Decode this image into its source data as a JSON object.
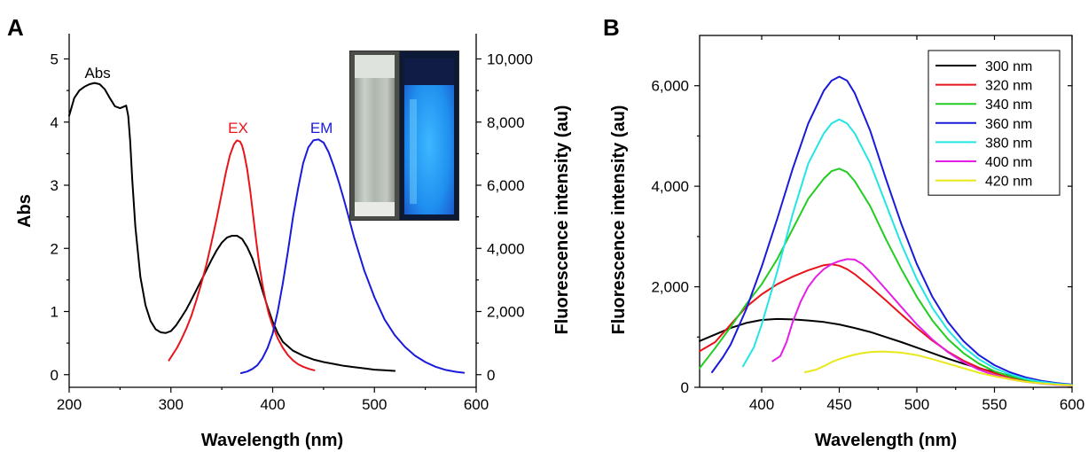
{
  "chart_data": [
    {
      "panel": "A",
      "type": "line",
      "xlabel": "Wavelength (nm)",
      "ylabel": "Abs",
      "y2label": "Fluorescence intensity (au)",
      "xlim": [
        200,
        600
      ],
      "ylim": [
        -0.2,
        5.4
      ],
      "y2lim": [
        -400,
        10800
      ],
      "xticks": [
        200,
        300,
        400,
        500,
        600
      ],
      "yticks": [
        0,
        1,
        2,
        3,
        4,
        5
      ],
      "y2ticks": [
        0,
        2000,
        4000,
        6000,
        8000,
        10000
      ],
      "y2ticklabels": [
        "0",
        "2,000",
        "4,000",
        "6,000",
        "8,000",
        "10,000"
      ],
      "annotations": [
        {
          "text": "Abs",
          "color": "#000000",
          "x": 228,
          "y": 4.7
        },
        {
          "text": "EX",
          "color": "#e8141b",
          "x": 366,
          "y": 3.83
        },
        {
          "text": "EM",
          "color": "#1a1adb",
          "x": 448,
          "y": 3.83
        }
      ],
      "inset": "photo of two cuvettes, left clear under daylight, right glowing blue under UV",
      "series": [
        {
          "id": "abs",
          "axis": "left",
          "color": "#000000",
          "x": [
            200,
            205,
            210,
            215,
            220,
            225,
            230,
            235,
            240,
            245,
            250,
            253,
            256,
            258,
            260,
            262,
            265,
            270,
            275,
            280,
            285,
            290,
            295,
            300,
            305,
            310,
            315,
            320,
            325,
            330,
            335,
            340,
            345,
            350,
            355,
            360,
            365,
            370,
            375,
            380,
            385,
            390,
            395,
            400,
            405,
            410,
            420,
            430,
            440,
            450,
            460,
            470,
            480,
            490,
            500,
            510,
            520
          ],
          "y": [
            4.1,
            4.38,
            4.5,
            4.56,
            4.6,
            4.62,
            4.6,
            4.52,
            4.38,
            4.25,
            4.22,
            4.24,
            4.26,
            4.1,
            3.7,
            3.1,
            2.35,
            1.55,
            1.1,
            0.85,
            0.72,
            0.67,
            0.66,
            0.69,
            0.78,
            0.9,
            1.03,
            1.18,
            1.34,
            1.5,
            1.66,
            1.82,
            1.97,
            2.09,
            2.17,
            2.2,
            2.2,
            2.15,
            2.02,
            1.84,
            1.6,
            1.33,
            1.07,
            0.84,
            0.66,
            0.52,
            0.38,
            0.3,
            0.24,
            0.2,
            0.17,
            0.14,
            0.12,
            0.1,
            0.08,
            0.07,
            0.06
          ]
        },
        {
          "id": "ex",
          "axis": "right",
          "color": "#e8141b",
          "x": [
            298,
            302,
            306,
            310,
            315,
            320,
            325,
            330,
            335,
            340,
            345,
            350,
            354,
            358,
            362,
            365,
            368,
            370,
            372,
            375,
            378,
            381,
            384,
            387,
            390,
            393,
            396,
            400,
            405,
            410,
            415,
            420,
            425,
            430,
            436,
            441
          ],
          "y": [
            450,
            650,
            850,
            1100,
            1450,
            1850,
            2350,
            2900,
            3500,
            4200,
            4950,
            5750,
            6400,
            6950,
            7300,
            7420,
            7380,
            7250,
            7000,
            6500,
            5800,
            5000,
            4200,
            3450,
            2850,
            2350,
            1950,
            1550,
            1150,
            850,
            620,
            450,
            330,
            250,
            180,
            140
          ]
        },
        {
          "id": "em",
          "axis": "right",
          "color": "#1a1adb",
          "x": [
            369,
            375,
            380,
            385,
            390,
            395,
            400,
            405,
            410,
            415,
            420,
            425,
            430,
            435,
            440,
            445,
            450,
            455,
            460,
            465,
            470,
            475,
            480,
            490,
            500,
            510,
            520,
            530,
            540,
            550,
            560,
            570,
            580,
            588
          ],
          "y": [
            50,
            100,
            180,
            300,
            520,
            850,
            1300,
            2000,
            2900,
            3900,
            5000,
            5900,
            6700,
            7200,
            7420,
            7450,
            7350,
            7050,
            6600,
            6100,
            5550,
            4950,
            4350,
            3300,
            2450,
            1750,
            1250,
            880,
            600,
            400,
            250,
            150,
            90,
            60
          ]
        }
      ]
    },
    {
      "panel": "B",
      "type": "line",
      "xlabel": "Wavelength (nm)",
      "ylabel": "Fluorescence intensity (au)",
      "xlim": [
        360,
        600
      ],
      "ylim": [
        0,
        7000
      ],
      "xticks": [
        400,
        450,
        500,
        550,
        600
      ],
      "yticks": [
        0,
        2000,
        4000,
        6000
      ],
      "yticklabels": [
        "0",
        "2,000",
        "4,000",
        "6,000"
      ],
      "legend_position": "top-right",
      "series": [
        {
          "name": "300 nm",
          "color": "#000000",
          "x": [
            360,
            370,
            380,
            390,
            400,
            410,
            420,
            430,
            440,
            450,
            460,
            470,
            480,
            490,
            500,
            510,
            520,
            530,
            540,
            550,
            560,
            570,
            580,
            590,
            600
          ],
          "y": [
            920,
            1050,
            1180,
            1280,
            1340,
            1360,
            1350,
            1330,
            1300,
            1250,
            1180,
            1100,
            1000,
            900,
            790,
            680,
            570,
            470,
            380,
            300,
            230,
            170,
            120,
            80,
            50
          ]
        },
        {
          "name": "320 nm",
          "color": "#e8141b",
          "x": [
            360,
            370,
            380,
            390,
            400,
            410,
            420,
            430,
            440,
            445,
            450,
            455,
            460,
            470,
            480,
            490,
            500,
            510,
            520,
            530,
            540,
            550,
            560,
            570,
            580,
            590,
            600
          ],
          "y": [
            720,
            900,
            1250,
            1600,
            1850,
            2050,
            2200,
            2330,
            2430,
            2450,
            2420,
            2350,
            2250,
            2000,
            1730,
            1450,
            1180,
            930,
            710,
            530,
            390,
            280,
            200,
            140,
            95,
            65,
            40
          ]
        },
        {
          "name": "340 nm",
          "color": "#22cc22",
          "x": [
            360,
            370,
            380,
            390,
            400,
            410,
            420,
            430,
            440,
            445,
            450,
            455,
            460,
            470,
            480,
            490,
            500,
            510,
            520,
            530,
            540,
            550,
            560,
            570,
            580,
            590,
            600
          ],
          "y": [
            380,
            780,
            1200,
            1650,
            2050,
            2550,
            3150,
            3750,
            4150,
            4300,
            4350,
            4280,
            4100,
            3600,
            2950,
            2350,
            1800,
            1330,
            960,
            680,
            470,
            320,
            220,
            150,
            100,
            70,
            45
          ]
        },
        {
          "name": "360 nm",
          "color": "#1a1adb",
          "x": [
            368,
            375,
            380,
            390,
            400,
            410,
            420,
            430,
            440,
            445,
            450,
            455,
            460,
            470,
            480,
            490,
            500,
            510,
            520,
            530,
            540,
            550,
            560,
            570,
            580,
            590,
            600
          ],
          "y": [
            300,
            600,
            850,
            1550,
            2400,
            3350,
            4350,
            5250,
            5900,
            6100,
            6180,
            6100,
            5850,
            5100,
            4150,
            3250,
            2450,
            1800,
            1300,
            920,
            640,
            440,
            300,
            200,
            130,
            85,
            55
          ]
        },
        {
          "name": "380 nm",
          "color": "#22e5e5",
          "x": [
            388,
            395,
            400,
            410,
            420,
            430,
            440,
            445,
            450,
            455,
            460,
            470,
            480,
            490,
            500,
            510,
            520,
            530,
            540,
            550,
            560,
            570,
            580,
            590,
            600
          ],
          "y": [
            420,
            800,
            1250,
            2300,
            3450,
            4450,
            5050,
            5250,
            5330,
            5250,
            5050,
            4450,
            3650,
            2850,
            2150,
            1580,
            1140,
            800,
            560,
            380,
            260,
            170,
            110,
            70,
            45
          ]
        },
        {
          "name": "400 nm",
          "color": "#e51ee5",
          "x": [
            407,
            412,
            416,
            420,
            425,
            430,
            435,
            440,
            445,
            450,
            455,
            460,
            465,
            470,
            480,
            490,
            500,
            510,
            520,
            530,
            540,
            550,
            560,
            570,
            580,
            590,
            600
          ],
          "y": [
            520,
            620,
            900,
            1300,
            1700,
            2000,
            2200,
            2350,
            2450,
            2510,
            2550,
            2540,
            2450,
            2300,
            1950,
            1600,
            1250,
            950,
            700,
            500,
            350,
            240,
            160,
            110,
            75,
            50,
            35
          ]
        },
        {
          "name": "420 nm",
          "color": "#e8e81a",
          "x": [
            428,
            435,
            440,
            445,
            450,
            455,
            460,
            465,
            470,
            475,
            480,
            490,
            500,
            510,
            520,
            530,
            540,
            550,
            560,
            570,
            580,
            590,
            600
          ],
          "y": [
            300,
            350,
            420,
            500,
            560,
            610,
            650,
            680,
            700,
            710,
            710,
            690,
            640,
            560,
            470,
            380,
            290,
            220,
            160,
            110,
            80,
            55,
            40
          ]
        }
      ]
    }
  ]
}
